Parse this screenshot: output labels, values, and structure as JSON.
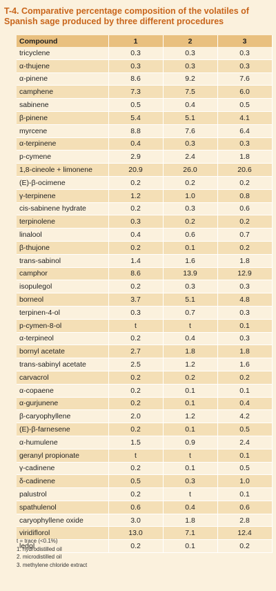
{
  "title": "T-4. Comparative percentage composition of the volatiles of Spanish sage produced by three different procedures",
  "columns": [
    "Compound",
    "1",
    "2",
    "3"
  ],
  "rows": [
    [
      "tricyclene",
      "0.3",
      "0.3",
      "0.3"
    ],
    [
      "α-thujene",
      "0.3",
      "0.3",
      "0.3"
    ],
    [
      "α-pinene",
      "8.6",
      "9.2",
      "7.6"
    ],
    [
      "camphene",
      "7.3",
      "7.5",
      "6.0"
    ],
    [
      "sabinene",
      "0.5",
      "0.4",
      "0.5"
    ],
    [
      "β-pinene",
      "5.4",
      "5.1",
      "4.1"
    ],
    [
      "myrcene",
      "8.8",
      "7.6",
      "6.4"
    ],
    [
      "α-terpinene",
      "0.4",
      "0.3",
      "0.3"
    ],
    [
      "p-cymene",
      "2.9",
      "2.4",
      "1.8"
    ],
    [
      "1,8-cineole + limonene",
      "20.9",
      "26.0",
      "20.6"
    ],
    [
      "(E)-β-ocimene",
      "0.2",
      "0.2",
      "0.2"
    ],
    [
      "γ-terpinene",
      "1.2",
      "1.0",
      "0.8"
    ],
    [
      "cis-sabinene hydrate",
      "0.2",
      "0.3",
      "0.6"
    ],
    [
      "terpinolene",
      "0.3",
      "0.2",
      "0.2"
    ],
    [
      "linalool",
      "0.4",
      "0.6",
      "0.7"
    ],
    [
      "β-thujone",
      "0.2",
      "0.1",
      "0.2"
    ],
    [
      "trans-sabinol",
      "1.4",
      "1.6",
      "1.8"
    ],
    [
      "camphor",
      "8.6",
      "13.9",
      "12.9"
    ],
    [
      "isopulegol",
      "0.2",
      "0.3",
      "0.3"
    ],
    [
      "borneol",
      "3.7",
      "5.1",
      "4.8"
    ],
    [
      "terpinen-4-ol",
      "0.3",
      "0.7",
      "0.3"
    ],
    [
      "p-cymen-8-ol",
      "t",
      "t",
      "0.1"
    ],
    [
      "α-terpineol",
      "0.2",
      "0.4",
      "0.3"
    ],
    [
      "bornyl acetate",
      "2.7",
      "1.8",
      "1.8"
    ],
    [
      "trans-sabinyl acetate",
      "2.5",
      "1.2",
      "1.6"
    ],
    [
      "carvacrol",
      "0.2",
      "0.2",
      "0.2"
    ],
    [
      "α-copaene",
      "0.2",
      "0.1",
      "0.1"
    ],
    [
      "α-gurjunene",
      "0.2",
      "0.1",
      "0.4"
    ],
    [
      "β-caryophyllene",
      "2.0",
      "1.2",
      "4.2"
    ],
    [
      "(E)-β-farnesene",
      "0.2",
      "0.1",
      "0.5"
    ],
    [
      "α-humulene",
      "1.5",
      "0.9",
      "2.4"
    ],
    [
      "geranyl propionate",
      "t",
      "t",
      "0.1"
    ],
    [
      "γ-cadinene",
      "0.2",
      "0.1",
      "0.5"
    ],
    [
      "δ-cadinene",
      "0.5",
      "0.3",
      "1.0"
    ],
    [
      "palustrol",
      "0.2",
      "t",
      "0.1"
    ],
    [
      "spathulenol",
      "0.6",
      "0.4",
      "0.6"
    ],
    [
      "caryophyllene oxide",
      "3.0",
      "1.8",
      "2.8"
    ],
    [
      "viridiflorol",
      "13.0",
      "7.1",
      "12.4"
    ],
    [
      "ledol",
      "0.2",
      "0.1",
      "0.2"
    ]
  ],
  "notes": [
    "t = trace (<0.1%)",
    "1. hydrodistilled oil",
    "2. microdistilled oil",
    "3. methylene chloride extract"
  ],
  "colors": {
    "title": "#c8651b",
    "header": "#e9c07f",
    "row_light": "#fbf1dd",
    "row_dark": "#f4dfb6"
  }
}
